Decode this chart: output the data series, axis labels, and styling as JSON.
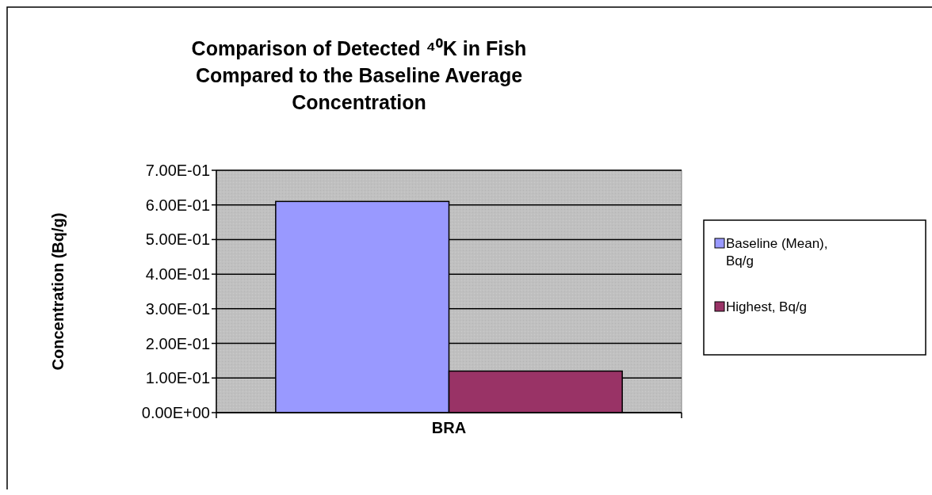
{
  "chart_data": {
    "type": "bar",
    "title": "Comparison of Detected ⁴⁰K in Fish Compared  to the Baseline Average Concentration",
    "ylabel": "Concentration (Bq/g)",
    "categories": [
      "BRA"
    ],
    "series": [
      {
        "name": "Baseline (Mean), Bq/g",
        "color": "#9999ff",
        "values": [
          0.61
        ]
      },
      {
        "name": "Highest, Bq/g",
        "color": "#993366",
        "values": [
          0.12
        ]
      }
    ],
    "ylim": [
      0,
      0.7
    ],
    "yticks": [
      {
        "value": 0,
        "label": "0.00E+00"
      },
      {
        "value": 0.1,
        "label": "1.00E-01"
      },
      {
        "value": 0.2,
        "label": "2.00E-01"
      },
      {
        "value": 0.3,
        "label": "3.00E-01"
      },
      {
        "value": 0.4,
        "label": "4.00E-01"
      },
      {
        "value": 0.5,
        "label": "5.00E-01"
      },
      {
        "value": 0.6,
        "label": "6.00E-01"
      },
      {
        "value": 0.7,
        "label": "7.00E-01"
      }
    ],
    "grid": "y",
    "legend": "right"
  }
}
